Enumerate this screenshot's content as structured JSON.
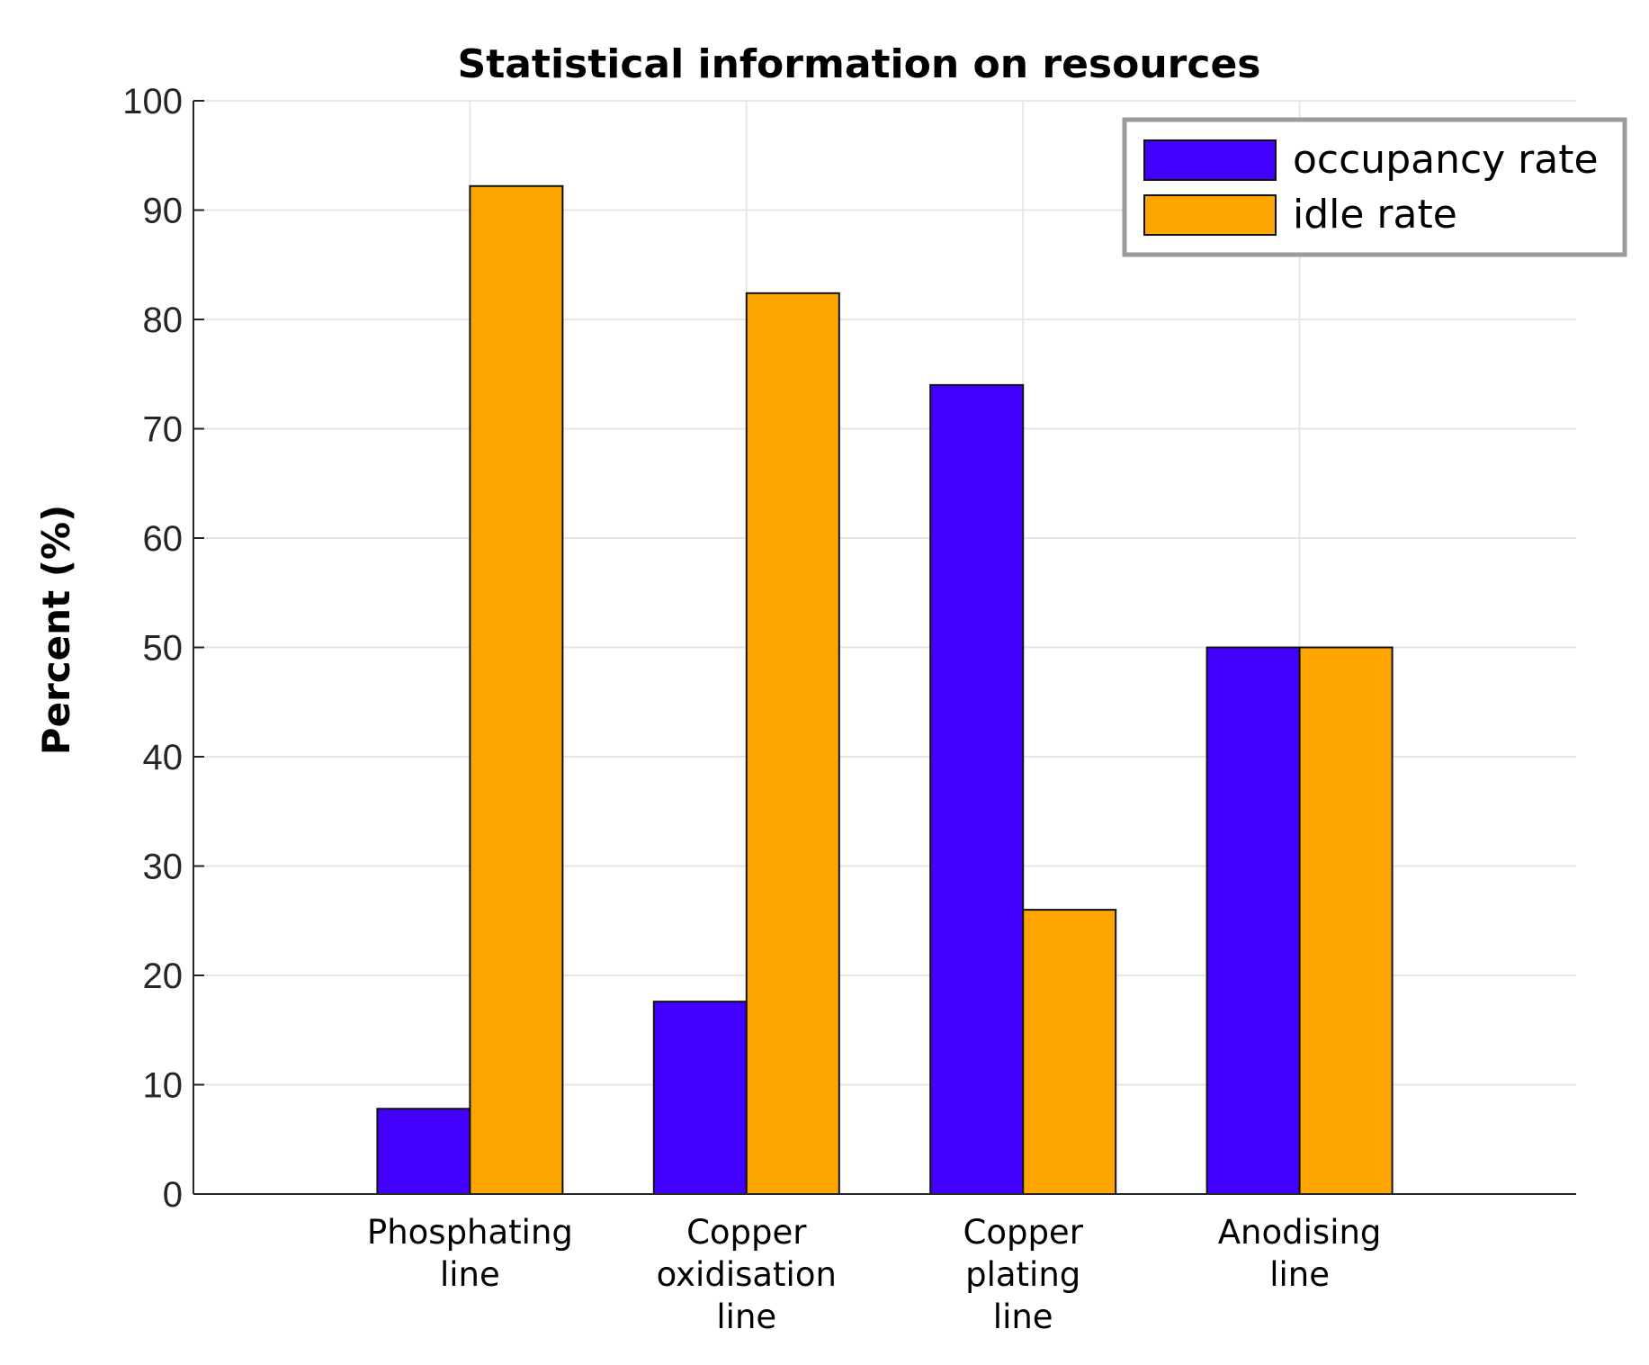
{
  "chart_data": {
    "type": "bar",
    "title": "Statistical information on resources",
    "xlabel": "",
    "ylabel": "Percent (%)",
    "ylim": [
      0,
      100
    ],
    "yticks": [
      "0",
      "10",
      "20",
      "30",
      "40",
      "50",
      "60",
      "70",
      "80",
      "90",
      "100"
    ],
    "grid": true,
    "legend_position": "top-right",
    "categories": [
      [
        "Phosphating",
        "line"
      ],
      [
        "Copper",
        "oxidisation",
        "line"
      ],
      [
        "Copper",
        "plating",
        "line"
      ],
      [
        "Anodising",
        "line"
      ]
    ],
    "series": [
      {
        "name": "occupancy rate",
        "color": "#4200FF",
        "values": [
          7.8,
          17.6,
          74.0,
          50.0
        ]
      },
      {
        "name": "idle rate",
        "color": "#FFA500",
        "values": [
          92.2,
          82.4,
          26.0,
          50.0
        ]
      }
    ]
  }
}
